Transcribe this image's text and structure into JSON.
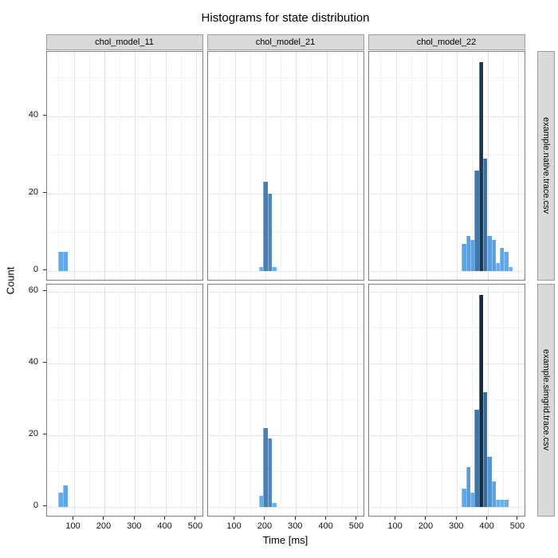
{
  "chart_data": {
    "type": "bar",
    "subtype": "faceted-histogram",
    "title": "Histograms for state distribution",
    "xlabel": "Time [ms]",
    "ylabel": "Count",
    "col_facets": [
      "chol_model_11",
      "chol_model_21",
      "chol_model_22"
    ],
    "row_facets": [
      "example.native.trace.csv",
      "example.simgrid.trace.csv"
    ],
    "x_domain": [
      11,
      525
    ],
    "x_major_ticks": [
      100,
      200,
      300,
      400,
      500
    ],
    "x_minor_ticks": [
      50,
      150,
      250,
      350,
      450
    ],
    "rows": [
      {
        "label": "example.native.trace.csv",
        "y_domain": [
          -2.7,
          56.7
        ],
        "y_major_ticks": [
          0,
          20,
          40
        ],
        "y_minor_ticks": [
          10,
          30,
          50
        ]
      },
      {
        "label": "example.simgrid.trace.csv",
        "y_domain": [
          -3,
          62
        ],
        "y_major_ticks": [
          0,
          20,
          40,
          60
        ],
        "y_minor_ticks": [
          10,
          30,
          50
        ]
      }
    ],
    "legend_position": "none",
    "grid": "on",
    "fill_gradient": {
      "low_count": 1,
      "high_count": 59,
      "low_color": "#66B2F7",
      "high_color": "#132B43"
    },
    "cells": [
      {
        "row": 0,
        "col": 0,
        "bin_edges_ms": [
          48,
          63.5,
          79
        ],
        "counts": [
          5,
          5
        ]
      },
      {
        "row": 0,
        "col": 1,
        "bin_edges_ms": [
          178,
          192.8,
          207.5,
          222.3,
          237
        ],
        "counts": [
          1,
          23,
          20,
          1
        ]
      },
      {
        "row": 0,
        "col": 2,
        "bin_edges_ms": [
          316,
          329.8,
          343.7,
          357.5,
          371.4,
          385.2,
          399.1,
          412.9,
          426.8,
          440.6,
          454.5,
          468.3,
          482.2
        ],
        "counts": [
          7,
          9,
          8,
          26,
          54,
          29,
          9,
          8,
          2,
          6,
          5,
          1
        ]
      },
      {
        "row": 1,
        "col": 0,
        "bin_edges_ms": [
          48,
          63.5,
          79
        ],
        "counts": [
          4,
          6
        ]
      },
      {
        "row": 1,
        "col": 1,
        "bin_edges_ms": [
          178,
          192.8,
          207.5,
          222.3,
          237
        ],
        "counts": [
          3,
          22,
          19,
          1
        ]
      },
      {
        "row": 1,
        "col": 2,
        "bin_edges_ms": [
          316,
          329.8,
          343.7,
          357.5,
          371.4,
          385.2,
          399.1,
          412.9,
          426.8,
          440.6,
          454.5,
          468.3
        ],
        "counts": [
          5,
          11,
          4,
          27,
          59,
          32,
          14,
          7,
          2,
          2,
          2
        ]
      }
    ],
    "colors": {
      "background": "#FFFFFF",
      "strip_bg": "#D9D9D9",
      "strip_border": "#9C9C9C",
      "panel_border": "#7F7F7F",
      "grid_major": "#E4E4E4",
      "grid_minor": "#F2F2F2",
      "text": "#000000"
    }
  }
}
